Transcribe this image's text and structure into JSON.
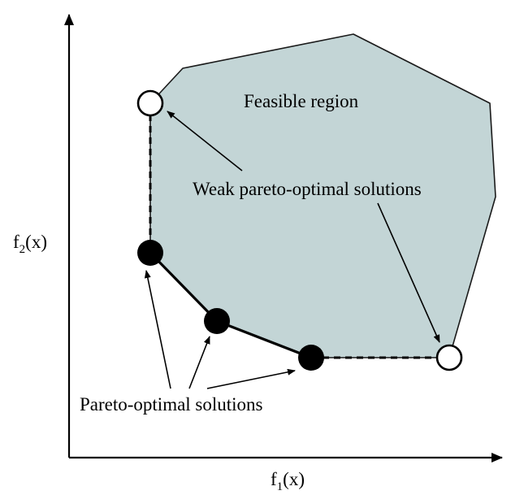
{
  "labels": {
    "feasible_region": "Feasible region",
    "weak_pareto": "Weak pareto-optimal solutions",
    "pareto": "Pareto-optimal solutions",
    "x_axis_base": "f",
    "x_axis_sub": "1",
    "x_axis_arg": "(x)",
    "y_axis_base": "f",
    "y_axis_sub": "2",
    "y_axis_arg": "(x)"
  },
  "colors": {
    "feasible_fill": "#c3d5d6",
    "outline": "#1a1a1a",
    "pareto_point": "#000000",
    "weak_point_fill": "#ffffff"
  }
}
